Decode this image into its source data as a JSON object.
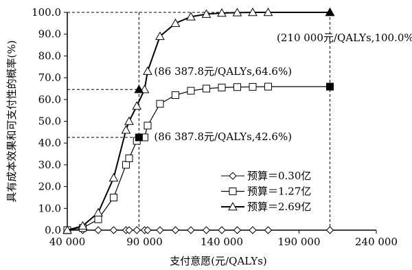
{
  "chart_data": {
    "type": "line",
    "title": "",
    "xlabel": "支付意愿(元/QALYs)",
    "ylabel": "具有成本效果和可支付性的概率(%)",
    "xlim": [
      40000,
      240000
    ],
    "ylim": [
      0,
      100
    ],
    "x_ticks": [
      40000,
      90000,
      140000,
      190000,
      240000
    ],
    "x_tick_labels": [
      "40 000",
      "90 000",
      "140 000",
      "190 000",
      "240 000"
    ],
    "y_ticks": [
      0,
      10,
      20,
      30,
      40,
      50,
      60,
      70,
      80,
      90,
      100
    ],
    "y_tick_labels": [
      "0.0",
      "10.0",
      "20.0",
      "30.0",
      "40.0",
      "50.0",
      "60.0",
      "70.0",
      "80.0",
      "90.0",
      "100.0"
    ],
    "grid": false,
    "legend_position": "bottom-right",
    "series": [
      {
        "name": "预算＝0.30亿",
        "marker": "diamond",
        "x": [
          40000,
          50000,
          60000,
          70000,
          78000,
          80000,
          85000,
          90000,
          92000,
          100000,
          110000,
          120000,
          130000,
          140000,
          150000,
          160000,
          170000,
          210000
        ],
        "y": [
          0,
          0,
          0,
          0,
          0,
          0,
          0,
          0,
          0,
          0,
          0,
          0,
          0,
          0,
          0,
          0,
          0,
          0
        ]
      },
      {
        "name": "预算＝1.27亿",
        "marker": "square",
        "x": [
          40000,
          50000,
          60000,
          70000,
          78000,
          80000,
          85000,
          90000,
          92000,
          100000,
          110000,
          120000,
          130000,
          140000,
          150000,
          160000,
          170000,
          210000
        ],
        "y": [
          0,
          1,
          5,
          15,
          30,
          33,
          41,
          42.6,
          48,
          58,
          62,
          64,
          65,
          65.5,
          65.7,
          65.8,
          65.9,
          65.9
        ]
      },
      {
        "name": "预算＝2.69亿",
        "marker": "triangle",
        "x": [
          40000,
          50000,
          60000,
          70000,
          78000,
          80000,
          85000,
          90000,
          92000,
          100000,
          110000,
          120000,
          130000,
          140000,
          150000,
          160000,
          170000,
          210000
        ],
        "y": [
          0,
          2,
          8,
          24,
          46,
          50,
          57,
          64.6,
          73,
          89,
          95,
          98,
          99.2,
          99.7,
          99.9,
          100,
          100,
          100
        ]
      }
    ],
    "highlight_points": [
      {
        "series": "预算＝2.69亿",
        "x": 210000,
        "y": 100
      },
      {
        "series": "预算＝1.27亿",
        "x": 210000,
        "y": 65.9
      },
      {
        "series": "预算＝2.69亿",
        "x": 86387.8,
        "y": 64.6
      },
      {
        "series": "预算＝1.27亿",
        "x": 86387.8,
        "y": 42.6
      }
    ],
    "reference_lines": [
      {
        "orientation": "vertical",
        "x": 86387.8
      },
      {
        "orientation": "vertical",
        "x": 210000
      },
      {
        "orientation": "horizontal",
        "y": 100
      },
      {
        "orientation": "horizontal",
        "y": 64.6
      },
      {
        "orientation": "horizontal",
        "y": 42.6
      }
    ],
    "annotations": [
      {
        "text": "(210 000元/QALYs,100.0%)",
        "x": 210000,
        "y": 100
      },
      {
        "text": "(86 387.8元/QALYs,64.6%)",
        "x": 86387.8,
        "y": 64.6
      },
      {
        "text": "(86 387.8元/QALYs,42.6%)",
        "x": 86387.8,
        "y": 42.6
      }
    ]
  }
}
